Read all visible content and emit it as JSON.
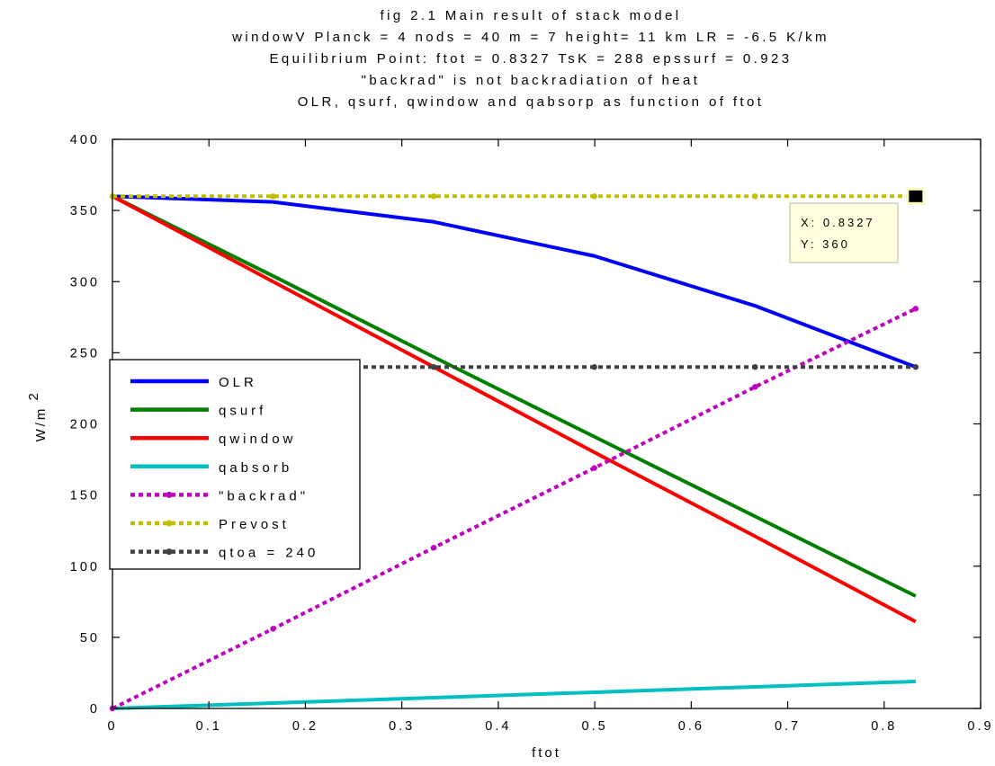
{
  "chart_data": {
    "type": "line",
    "title_lines": [
      "fig 2.1 Main result of stack model",
      "windowV Planck = 4 nods = 40  m = 7  height= 11 km   LR = -6.5 K/km",
      "Equilibrium Point:  ftot =  0.8327 TsK =  288  epssurf =  0.923",
      "\"backrad\" is not backradiation of heat",
      "OLR, qsurf, qwindow and qabsorp as function of ftot"
    ],
    "xlabel": "ftot",
    "ylabel": "W/m",
    "ylabel_sup": "2",
    "xlim": [
      0,
      0.9
    ],
    "ylim": [
      0,
      400
    ],
    "xticks": [
      0,
      0.1,
      0.2,
      0.3,
      0.4,
      0.5,
      0.6,
      0.7,
      0.8,
      0.9
    ],
    "xtick_labels": [
      "0",
      "0.1",
      "0.2",
      "0.3",
      "0.4",
      "0.5",
      "0.6",
      "0.7",
      "0.8",
      "0.9"
    ],
    "yticks": [
      0,
      50,
      100,
      150,
      200,
      250,
      300,
      350,
      400
    ],
    "ytick_labels": [
      "0",
      "50",
      "100",
      "150",
      "200",
      "250",
      "300",
      "350",
      "400"
    ],
    "grid": false,
    "legend_position": "center-left",
    "x": [
      0,
      0.1665,
      0.3331,
      0.4996,
      0.6662,
      0.8327
    ],
    "series": [
      {
        "name": "OLR",
        "color": "#0000ff",
        "style": "solid",
        "values": [
          360,
          356,
          342,
          318,
          283,
          240
        ]
      },
      {
        "name": "qsurf",
        "color": "#007f00",
        "style": "solid",
        "values": [
          360,
          304,
          247,
          191,
          135,
          79
        ]
      },
      {
        "name": "qwindow",
        "color": "#ff0000",
        "style": "solid",
        "values": [
          360,
          300,
          240,
          180,
          121,
          61
        ]
      },
      {
        "name": "qabsorb",
        "color": "#00bfbf",
        "style": "solid",
        "values": [
          0,
          3.8,
          7.6,
          11.4,
          15.2,
          19
        ]
      },
      {
        "name": "\"backrad\"",
        "color": "#bf00bf",
        "style": "dotted",
        "values": [
          0,
          56,
          113,
          169,
          226,
          281
        ]
      },
      {
        "name": "Prevost",
        "color": "#bfbf00",
        "style": "dotted",
        "values": [
          360,
          360,
          360,
          360,
          360,
          360
        ]
      },
      {
        "name": "qtoa = 240",
        "color": "#404040",
        "style": "dotted",
        "values": [
          240,
          240,
          240,
          240,
          240,
          240
        ]
      }
    ],
    "datatip": {
      "x_label": "X: 0.8327",
      "y_label": "Y: 360",
      "x": 0.8327,
      "y": 360
    }
  }
}
